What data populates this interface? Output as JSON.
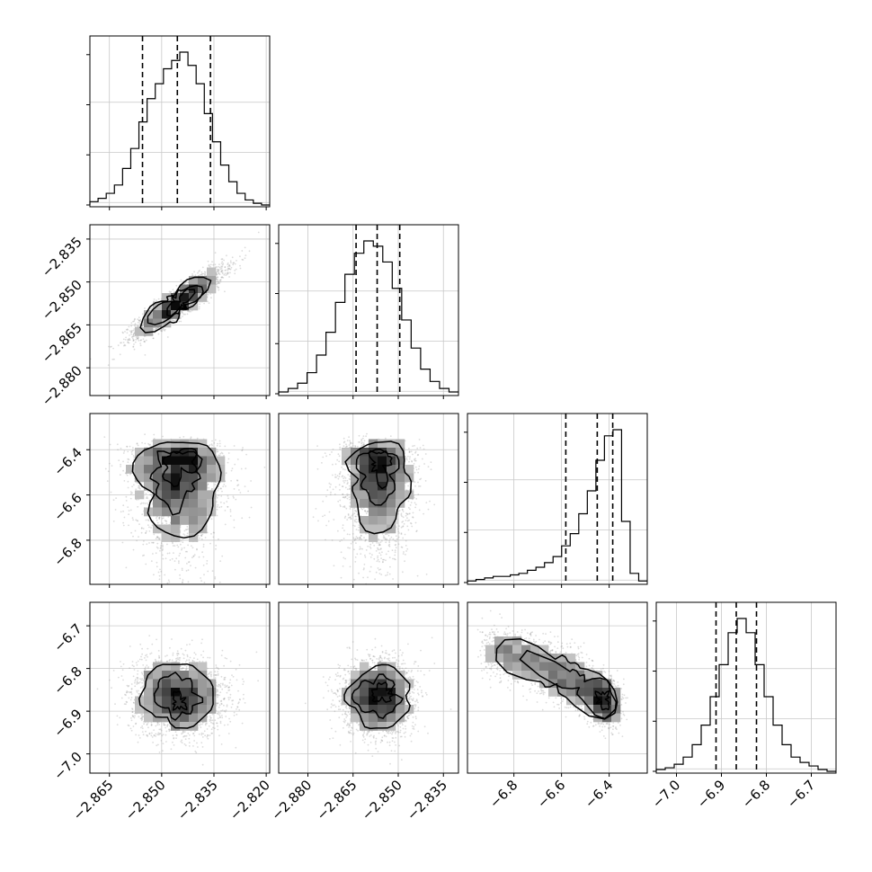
{
  "chart_data": {
    "type": "corner",
    "title": "",
    "grid": true,
    "parameters": [
      {
        "index": 0,
        "quantiles": [
          -2.8555,
          -2.8455,
          -2.836
        ],
        "range": [
          -2.8706,
          -2.819
        ]
      },
      {
        "index": 1,
        "quantiles": [
          -2.864,
          -2.857,
          -2.8495
        ],
        "range": [
          -2.8897,
          -2.83
        ]
      },
      {
        "index": 2,
        "quantiles": [
          -6.582,
          -6.45,
          -6.385
        ],
        "range": [
          -6.995,
          -6.24
        ]
      },
      {
        "index": 3,
        "quantiles": [
          -6.912,
          -6.867,
          -6.822
        ],
        "range": [
          -7.045,
          -6.645
        ]
      }
    ],
    "x_ticks": [
      {
        "values": [
          -2.865,
          -2.85,
          -2.835,
          -2.82
        ],
        "labels": [
          "−2.865",
          "−2.850",
          "−2.835",
          "−2.820"
        ]
      },
      {
        "values": [
          -2.88,
          -2.865,
          -2.85,
          -2.835
        ],
        "labels": [
          "−2.880",
          "−2.865",
          "−2.850",
          "−2.835"
        ]
      },
      {
        "values": [
          -6.8,
          -6.6,
          -6.4
        ],
        "labels": [
          "−6.8",
          "−6.6",
          "−6.4"
        ]
      },
      {
        "values": [
          -7.0,
          -6.9,
          -6.8,
          -6.7
        ],
        "labels": [
          "−7.0",
          "−6.9",
          "−6.8",
          "−6.7"
        ]
      }
    ],
    "y_ticks": [
      null,
      {
        "values": [
          -2.835,
          -2.85,
          -2.865,
          -2.88
        ],
        "labels": [
          "−2.835",
          "−2.850",
          "−2.865",
          "−2.880"
        ]
      },
      {
        "values": [
          -6.4,
          -6.6,
          -6.8
        ],
        "labels": [
          "−6.4",
          "−6.6",
          "−6.8"
        ]
      },
      {
        "values": [
          -6.7,
          -6.8,
          -6.9,
          -7.0
        ],
        "labels": [
          "−6.7",
          "−6.8",
          "−6.9",
          "−7.0"
        ]
      }
    ],
    "histograms": [
      [
        2,
        4,
        7,
        12,
        22,
        34,
        50,
        64,
        73,
        82,
        87,
        92,
        84,
        73,
        55,
        38,
        24,
        14,
        7,
        3,
        1,
        0
      ],
      [
        1,
        3,
        6,
        12,
        22,
        35,
        52,
        68,
        80,
        87,
        84,
        75,
        60,
        42,
        26,
        14,
        7,
        3,
        1
      ],
      [
        1,
        2,
        3,
        4,
        4,
        5,
        6,
        8,
        10,
        13,
        17,
        24,
        32,
        45,
        60,
        80,
        96,
        100,
        40,
        6,
        1
      ],
      [
        1,
        2,
        4,
        8,
        15,
        26,
        42,
        60,
        78,
        86,
        78,
        60,
        42,
        26,
        15,
        8,
        5,
        3,
        1,
        0
      ]
    ],
    "contours_2d": [
      {
        "x_param": 0,
        "y_param": 1,
        "shape": "elongated ellipse",
        "density_peak": [
          -2.845,
          -2.857
        ]
      },
      {
        "x_param": 0,
        "y_param": 2,
        "shape": "skewed, tail to low values",
        "density_peak": [
          -2.845,
          -6.41
        ]
      },
      {
        "x_param": 1,
        "y_param": 2,
        "shape": "skewed, tail to low values",
        "density_peak": [
          -2.857,
          -6.41
        ]
      },
      {
        "x_param": 0,
        "y_param": 3,
        "shape": "ellipse",
        "density_peak": [
          -2.845,
          -6.865
        ]
      },
      {
        "x_param": 1,
        "y_param": 3,
        "shape": "ellipse",
        "density_peak": [
          -2.857,
          -6.87
        ]
      },
      {
        "x_param": 2,
        "y_param": 3,
        "shape": "curved banana",
        "density_peak": [
          -6.39,
          -6.88
        ]
      }
    ]
  }
}
